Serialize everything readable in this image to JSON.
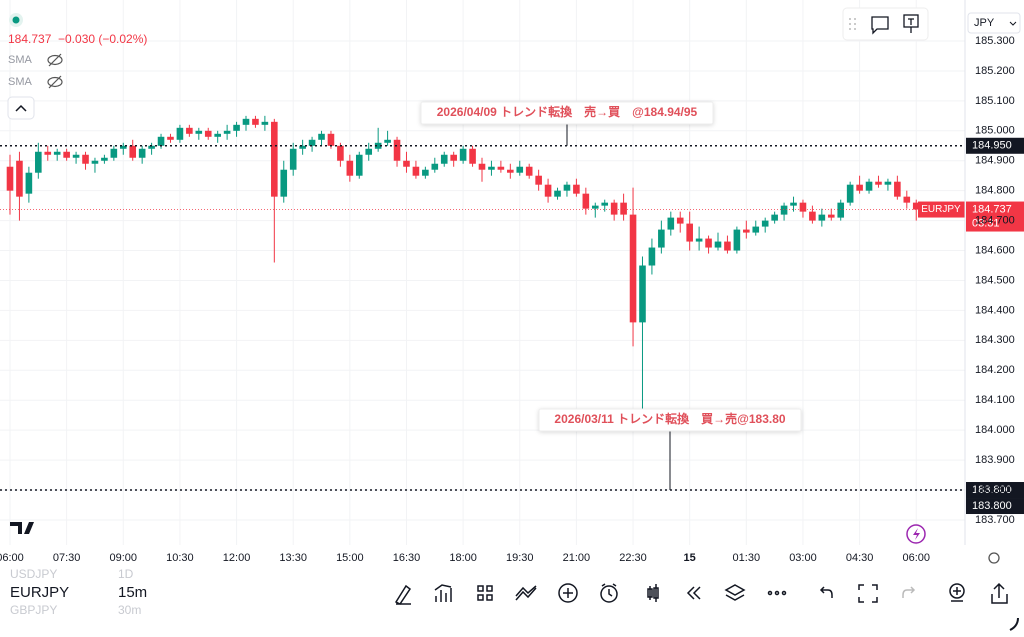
{
  "chart_data": {
    "type": "candlestick",
    "symbol": "EURJPY",
    "up_color": "#089981",
    "down_color": "#f23645",
    "categories": [
      "06:00",
      null,
      null,
      null,
      null,
      null,
      "07:30",
      null,
      null,
      null,
      null,
      null,
      "09:00",
      null,
      null,
      null,
      null,
      null,
      "10:30",
      null,
      null,
      null,
      null,
      null,
      "12:00",
      null,
      null,
      null,
      null,
      null,
      "13:30",
      null,
      null,
      null,
      null,
      null,
      "15:00",
      null,
      null,
      null,
      null,
      null,
      "16:30",
      null,
      null,
      null,
      null,
      null,
      "18:00",
      null,
      null,
      null,
      null,
      null,
      "19:30",
      null,
      null,
      null,
      null,
      null,
      "21:00",
      null,
      null,
      null,
      null,
      null,
      "22:30",
      null,
      null,
      null,
      null,
      null,
      "15",
      null,
      null,
      null,
      null,
      null,
      "01:30",
      null,
      null,
      null,
      null,
      null,
      "03:00",
      null,
      null,
      null,
      null,
      null,
      "04:30",
      null,
      null,
      null,
      null,
      null,
      "06:00"
    ],
    "open": [
      184.88,
      184.9,
      184.79,
      184.86,
      184.93,
      184.92,
      184.93,
      184.91,
      184.92,
      184.89,
      184.9,
      184.91,
      184.94,
      184.95,
      184.91,
      184.94,
      184.95,
      184.98,
      184.97,
      185.01,
      184.99,
      185.0,
      184.98,
      184.99,
      185.0,
      185.02,
      185.04,
      185.02,
      185.03,
      184.78,
      184.87,
      184.94,
      184.95,
      184.97,
      184.99,
      184.95,
      184.9,
      184.85,
      184.92,
      184.94,
      184.96,
      184.97,
      184.9,
      184.88,
      184.85,
      184.87,
      184.89,
      184.92,
      184.9,
      184.94,
      184.89,
      184.87,
      184.88,
      184.87,
      184.86,
      184.88,
      184.85,
      184.82,
      184.78,
      184.8,
      184.82,
      184.79,
      184.74,
      184.75,
      184.76,
      184.76,
      184.72,
      184.36,
      184.55,
      184.61,
      184.67,
      184.71,
      184.69,
      184.63,
      184.64,
      184.61,
      184.63,
      184.6,
      184.67,
      184.66,
      184.68,
      184.7,
      184.72,
      184.75,
      184.76,
      184.73,
      184.7,
      184.72,
      184.71,
      184.76,
      184.82,
      184.8,
      184.83,
      184.82,
      184.83,
      184.78,
      184.76
    ],
    "high": [
      184.92,
      184.93,
      184.88,
      184.96,
      184.95,
      184.94,
      184.94,
      184.93,
      184.93,
      184.91,
      184.92,
      184.95,
      184.96,
      184.97,
      184.95,
      184.96,
      184.99,
      184.99,
      185.02,
      185.02,
      185.01,
      185.01,
      185.0,
      185.02,
      185.03,
      185.05,
      185.05,
      185.05,
      185.04,
      184.9,
      184.96,
      184.97,
      184.98,
      185.0,
      185.0,
      184.96,
      184.92,
      184.93,
      184.96,
      185.01,
      185.0,
      184.98,
      184.93,
      184.9,
      184.88,
      184.91,
      184.93,
      184.93,
      184.95,
      184.95,
      184.91,
      184.9,
      184.9,
      184.89,
      184.9,
      184.89,
      184.87,
      184.84,
      184.81,
      184.83,
      184.84,
      184.81,
      184.76,
      184.77,
      184.77,
      184.79,
      184.81,
      184.58,
      184.64,
      184.7,
      184.73,
      184.73,
      184.73,
      184.68,
      184.65,
      184.66,
      184.65,
      184.68,
      184.7,
      184.7,
      184.71,
      184.73,
      184.76,
      184.78,
      184.77,
      184.75,
      184.74,
      184.74,
      184.77,
      184.83,
      184.85,
      184.84,
      184.85,
      184.84,
      184.85,
      184.8,
      184.77
    ],
    "low": [
      184.72,
      184.7,
      184.76,
      184.84,
      184.9,
      184.9,
      184.9,
      184.89,
      184.87,
      184.86,
      184.89,
      184.9,
      184.92,
      184.9,
      184.89,
      184.92,
      184.94,
      184.96,
      184.96,
      184.98,
      184.97,
      184.97,
      184.96,
      184.97,
      184.98,
      185.0,
      185.01,
      185.0,
      184.56,
      184.76,
      184.85,
      184.92,
      184.93,
      184.95,
      184.94,
      184.88,
      184.83,
      184.84,
      184.9,
      184.93,
      184.95,
      184.88,
      184.86,
      184.84,
      184.84,
      184.86,
      184.88,
      184.88,
      184.89,
      184.88,
      184.83,
      184.85,
      184.86,
      184.84,
      184.85,
      184.84,
      184.8,
      184.76,
      184.77,
      184.78,
      184.78,
      184.72,
      184.71,
      184.73,
      184.7,
      184.7,
      184.28,
      184.07,
      184.52,
      184.59,
      184.65,
      184.66,
      184.6,
      184.6,
      184.59,
      184.6,
      184.59,
      184.59,
      184.64,
      184.65,
      184.66,
      184.69,
      184.7,
      184.73,
      184.71,
      184.69,
      184.68,
      184.7,
      184.7,
      184.75,
      184.79,
      184.79,
      184.81,
      184.8,
      184.77,
      184.74,
      184.7
    ],
    "close": [
      184.8,
      184.78,
      184.86,
      184.93,
      184.92,
      184.93,
      184.91,
      184.92,
      184.89,
      184.9,
      184.91,
      184.94,
      184.95,
      184.91,
      184.94,
      184.95,
      184.98,
      184.97,
      185.01,
      184.99,
      185.0,
      184.98,
      184.99,
      185.0,
      185.02,
      185.04,
      185.02,
      185.03,
      184.78,
      184.87,
      184.94,
      184.95,
      184.97,
      184.99,
      184.95,
      184.9,
      184.85,
      184.92,
      184.94,
      184.96,
      184.97,
      184.9,
      184.88,
      184.85,
      184.87,
      184.89,
      184.92,
      184.9,
      184.94,
      184.89,
      184.87,
      184.88,
      184.87,
      184.86,
      184.88,
      184.85,
      184.82,
      184.78,
      184.8,
      184.82,
      184.79,
      184.74,
      184.75,
      184.76,
      184.72,
      184.72,
      184.36,
      184.55,
      184.61,
      184.67,
      184.71,
      184.69,
      184.63,
      184.64,
      184.61,
      184.63,
      184.6,
      184.67,
      184.66,
      184.68,
      184.7,
      184.72,
      184.75,
      184.76,
      184.73,
      184.7,
      184.72,
      184.71,
      184.76,
      184.82,
      184.8,
      184.83,
      184.82,
      184.83,
      184.78,
      184.76,
      184.737
    ],
    "ylim": [
      183.633,
      185.437
    ],
    "yticks": [
      {
        "value": 185.3,
        "label": "185.300"
      },
      {
        "value": 185.2,
        "label": "185.200"
      },
      {
        "value": 185.1,
        "label": "185.100"
      },
      {
        "value": 185.0,
        "label": "185.000"
      },
      {
        "value": 184.9,
        "label": "184.900"
      },
      {
        "value": 184.8,
        "label": "184.800"
      },
      {
        "value": 184.7,
        "label": "184.700"
      },
      {
        "value": 184.6,
        "label": "184.600"
      },
      {
        "value": 184.5,
        "label": "184.500"
      },
      {
        "value": 184.4,
        "label": "184.400"
      },
      {
        "value": 184.3,
        "label": "184.300"
      },
      {
        "value": 184.2,
        "label": "184.200"
      },
      {
        "value": 184.1,
        "label": "184.100"
      },
      {
        "value": 184.0,
        "label": "184.000"
      },
      {
        "value": 183.9,
        "label": "183.900"
      },
      {
        "value": 183.8,
        "label": "183.800"
      },
      {
        "value": 183.7,
        "label": "183.700"
      }
    ],
    "grid": true,
    "countdown": "03:31",
    "change": "−0.030 (−0.02%)",
    "currency": "JPY",
    "indicators": [
      "SMA",
      "SMA"
    ],
    "hlines": [
      {
        "value": 184.95,
        "label": "184.950"
      },
      {
        "value": 183.8,
        "label": "183.800"
      }
    ],
    "annotations": [
      "2026/04/09 トレンド転換　売→買　@184.94/95",
      "2026/03/11 トレンド転換　買→売@183.80"
    ]
  },
  "watchlist": [
    {
      "symbol": "USDJPY",
      "interval": "1D"
    },
    {
      "symbol": "EURJPY",
      "interval": "15m"
    },
    {
      "symbol": "GBPJPY",
      "interval": "30m"
    }
  ]
}
